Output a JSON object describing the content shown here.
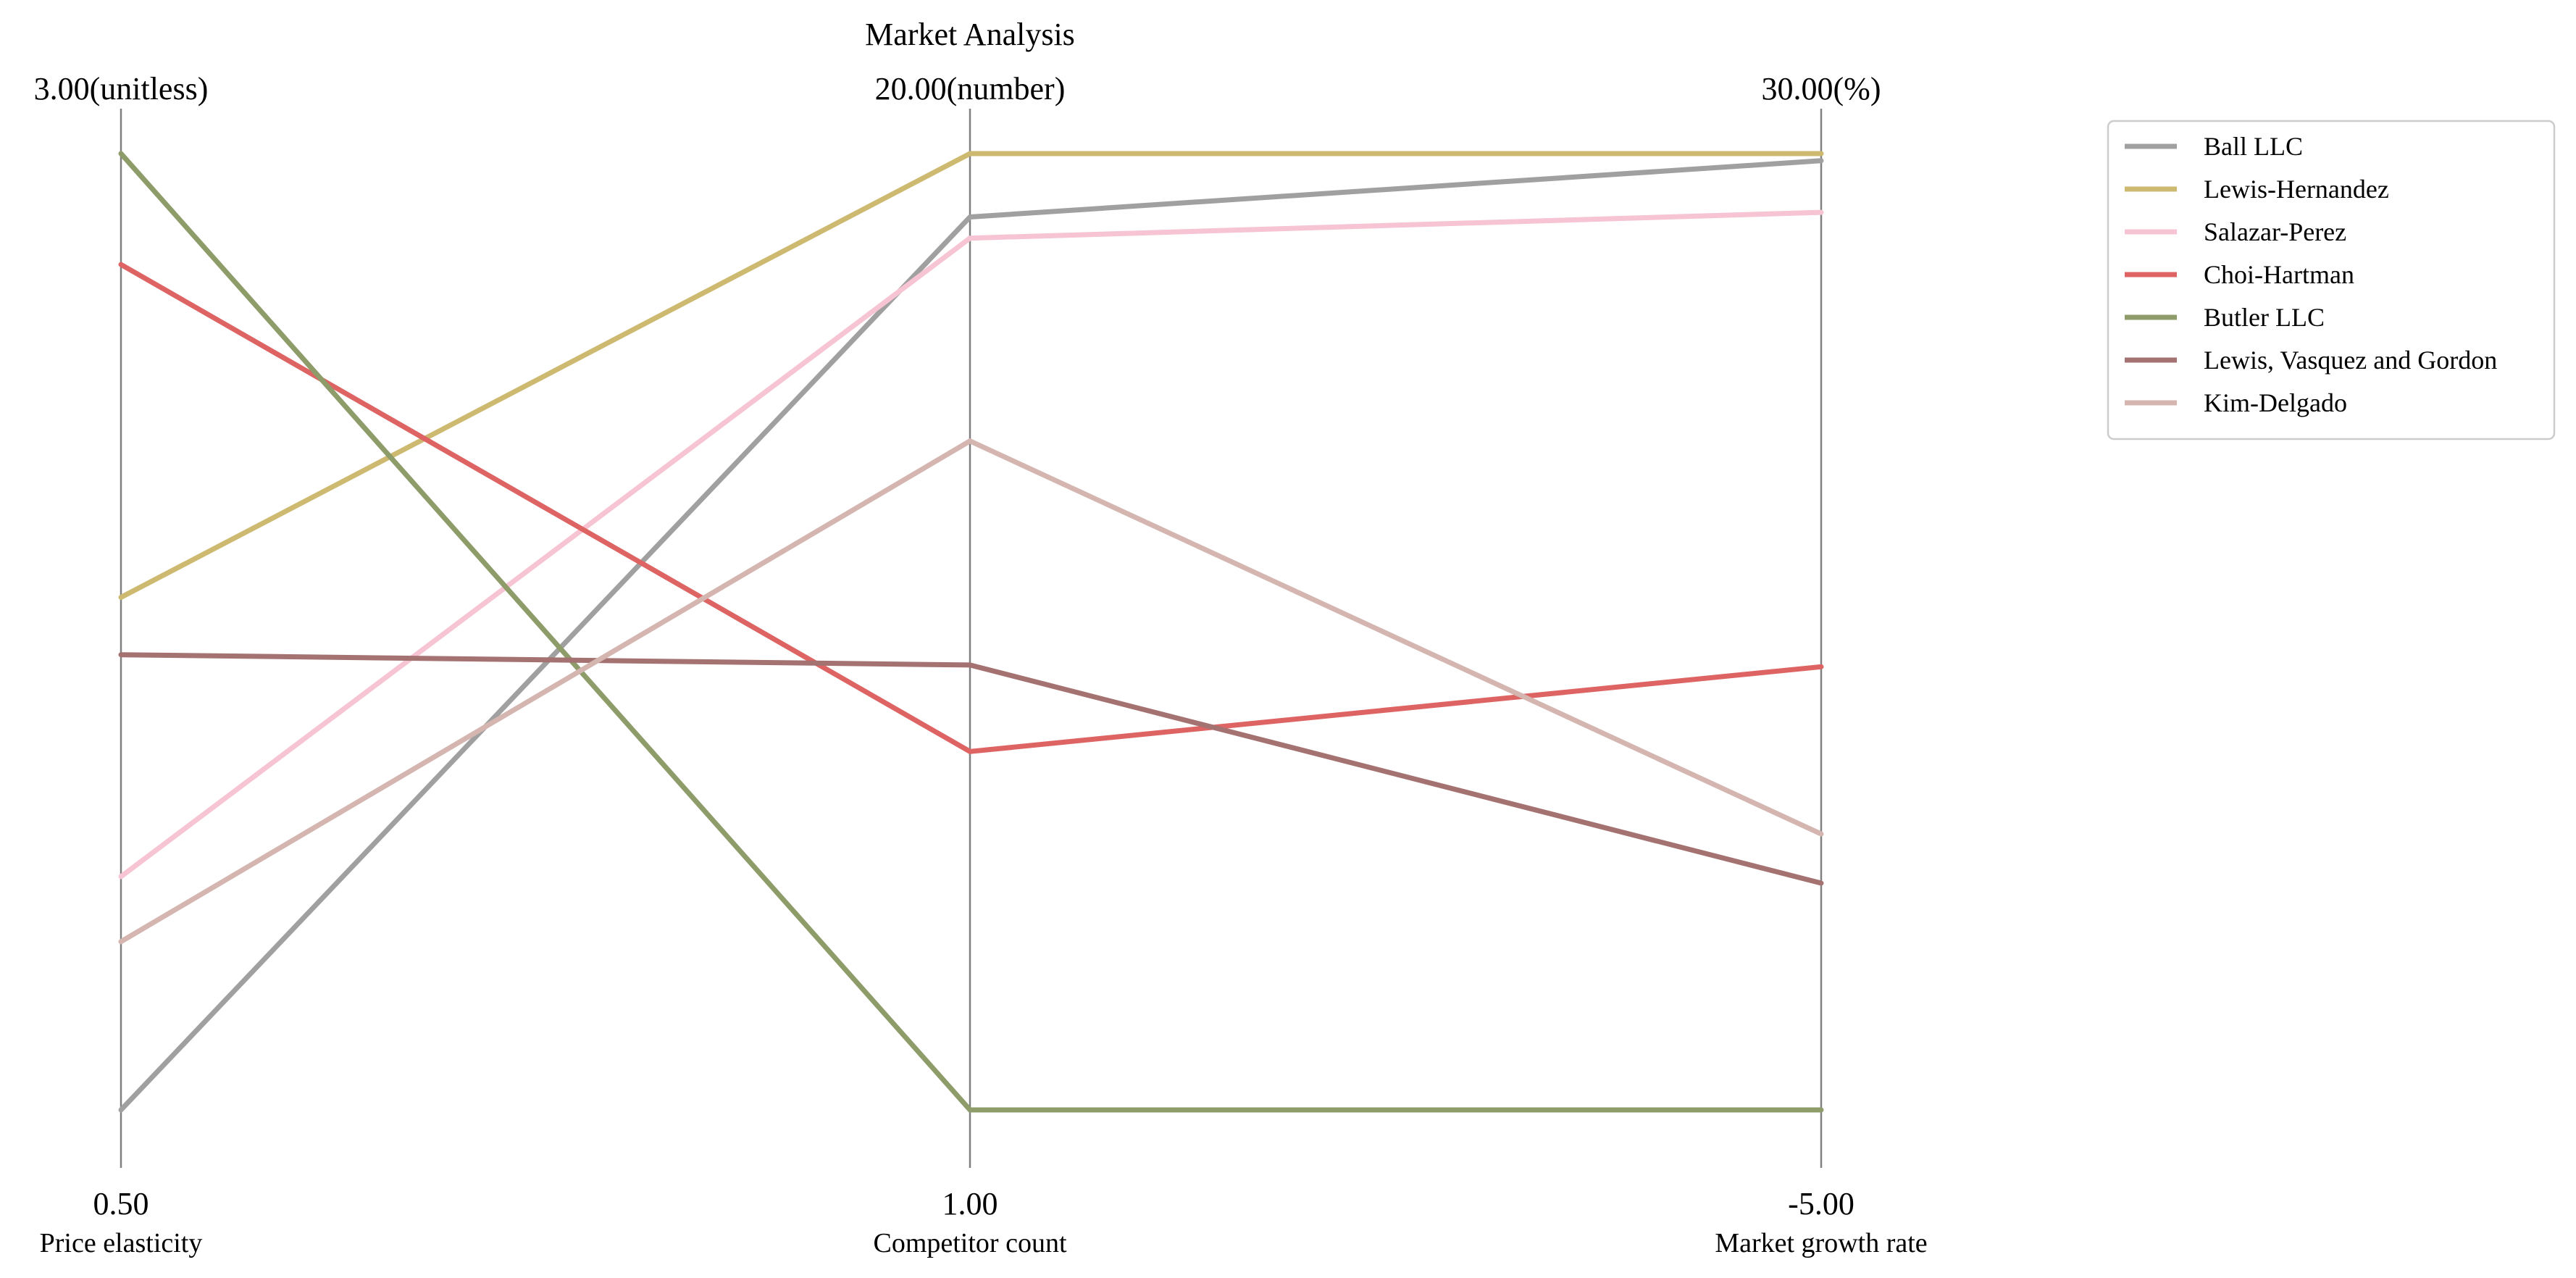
{
  "chart_data": {
    "type": "parallel-coordinates",
    "title": "Market Analysis",
    "axes": [
      {
        "name": "Price elasticity",
        "min": 0.5,
        "max": 3.0,
        "min_label": "0.50",
        "max_label": "3.00(unitless)"
      },
      {
        "name": "Competitor count",
        "min": 1.0,
        "max": 20.0,
        "min_label": "1.00",
        "max_label": "20.00(number)"
      },
      {
        "name": "Market growth rate",
        "min": -5.0,
        "max": 30.0,
        "min_label": "-5.00",
        "max_label": "30.00(%)"
      }
    ],
    "series": [
      {
        "name": "Ball LLC",
        "color": "#a0a0a0",
        "values": [
          0.5,
          18.74,
          29.74
        ]
      },
      {
        "name": "Lewis-Hernandez",
        "color": "#cdb96f",
        "values": [
          1.84,
          20.0,
          30.0
        ]
      },
      {
        "name": "Salazar-Perez",
        "color": "#f6c4d2",
        "values": [
          1.11,
          18.32,
          27.85
        ]
      },
      {
        "name": "Choi-Hartman",
        "color": "#de6464",
        "values": [
          2.71,
          8.12,
          11.22
        ]
      },
      {
        "name": "Butler LLC",
        "color": "#8e9c6a",
        "values": [
          3.0,
          1.0,
          -5.0
        ]
      },
      {
        "name": "Lewis, Vasquez and Gordon",
        "color": "#a57272",
        "values": [
          1.69,
          9.84,
          3.3
        ]
      },
      {
        "name": "Kim-Delgado",
        "color": "#d4b5b0",
        "values": [
          0.94,
          14.29,
          5.1
        ]
      }
    ],
    "legend_position": "top-right",
    "grid": false
  }
}
